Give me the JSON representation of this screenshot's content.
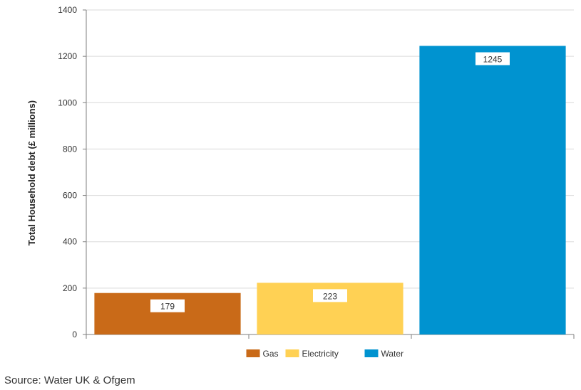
{
  "chart_data": {
    "type": "bar",
    "categories": [
      "Gas",
      "Electricity",
      "Water"
    ],
    "values": [
      179,
      223,
      1245
    ],
    "colors": [
      "#c96a18",
      "#ffd154",
      "#0093d0"
    ],
    "data_labels": [
      "179",
      "223",
      "1245"
    ],
    "ylabel": "Total Household debt (£ millions)",
    "ylim": [
      0,
      1400
    ],
    "yticks": [
      0,
      200,
      400,
      600,
      800,
      1000,
      1200,
      1400
    ],
    "grid": true,
    "legend_position": "bottom-center",
    "legend": [
      {
        "name": "Gas",
        "color": "#c96a18"
      },
      {
        "name": "Electricity",
        "color": "#ffd154"
      },
      {
        "name": "Water",
        "color": "#0093d0"
      }
    ]
  },
  "source": "Source: Water UK & Ofgem"
}
